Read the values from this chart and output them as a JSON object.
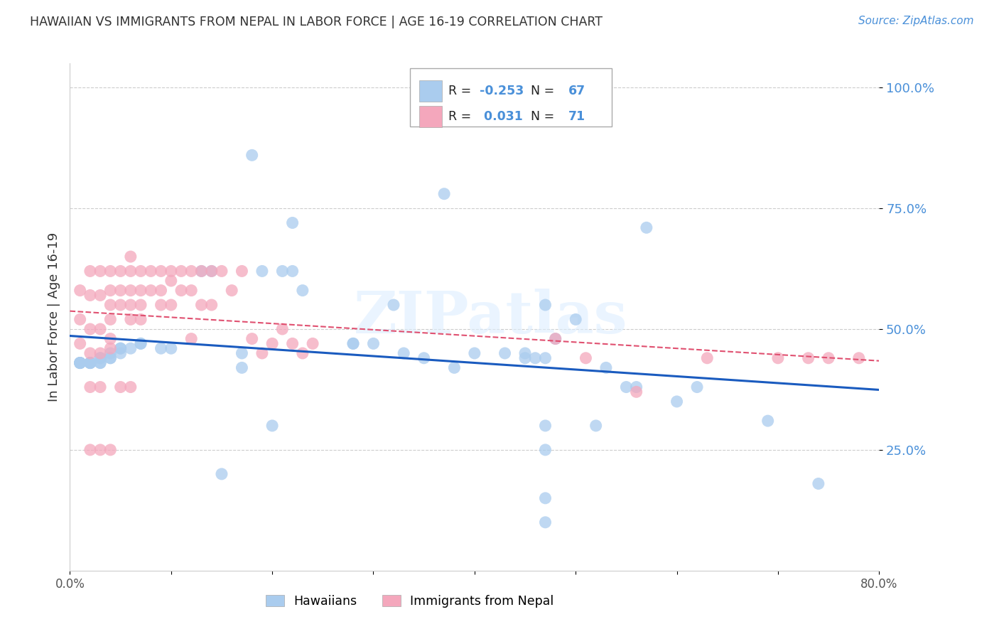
{
  "title": "HAWAIIAN VS IMMIGRANTS FROM NEPAL IN LABOR FORCE | AGE 16-19 CORRELATION CHART",
  "source": "Source: ZipAtlas.com",
  "ylabel": "In Labor Force | Age 16-19",
  "xlim": [
    0.0,
    0.8
  ],
  "ylim": [
    0.0,
    1.05
  ],
  "yticks": [
    0.25,
    0.5,
    0.75,
    1.0
  ],
  "ytick_labels": [
    "25.0%",
    "50.0%",
    "75.0%",
    "100.0%"
  ],
  "xtick_labels_show": [
    "0.0%",
    "80.0%"
  ],
  "hawaiians_color": "#aaccee",
  "nepal_color": "#f4a7bc",
  "trend_hawaiians_color": "#1a5bbf",
  "trend_nepal_color": "#e05070",
  "R_hawaiians": "-0.253",
  "N_hawaiians": "67",
  "R_nepal": "0.031",
  "N_nepal": "71",
  "watermark": "ZIPatlas",
  "background_color": "#ffffff",
  "grid_color": "#cccccc",
  "hawaiians_x": [
    0.32,
    0.37,
    0.47,
    0.5,
    0.48,
    0.43,
    0.38,
    0.57,
    0.13,
    0.14,
    0.19,
    0.23,
    0.28,
    0.3,
    0.17,
    0.1,
    0.09,
    0.07,
    0.07,
    0.06,
    0.05,
    0.05,
    0.04,
    0.04,
    0.03,
    0.03,
    0.02,
    0.02,
    0.02,
    0.01,
    0.01,
    0.01,
    0.28,
    0.33,
    0.4,
    0.53,
    0.56,
    0.6,
    0.69,
    0.74,
    0.45,
    0.52,
    0.55,
    0.62,
    0.46,
    0.2,
    0.15,
    0.18,
    0.22,
    0.35,
    0.45,
    0.21,
    0.22,
    0.17,
    0.05,
    0.04,
    0.03,
    0.03,
    0.02,
    0.02,
    0.01,
    0.01,
    0.47,
    0.47,
    0.47,
    0.47,
    0.47
  ],
  "hawaiians_y": [
    0.55,
    0.78,
    0.55,
    0.52,
    0.48,
    0.45,
    0.42,
    0.71,
    0.62,
    0.62,
    0.62,
    0.58,
    0.47,
    0.47,
    0.45,
    0.46,
    0.46,
    0.47,
    0.47,
    0.46,
    0.46,
    0.45,
    0.45,
    0.44,
    0.44,
    0.43,
    0.43,
    0.43,
    0.43,
    0.43,
    0.43,
    0.43,
    0.47,
    0.45,
    0.45,
    0.42,
    0.38,
    0.35,
    0.31,
    0.18,
    0.44,
    0.3,
    0.38,
    0.38,
    0.44,
    0.3,
    0.2,
    0.86,
    0.72,
    0.44,
    0.45,
    0.62,
    0.62,
    0.42,
    0.46,
    0.44,
    0.44,
    0.43,
    0.43,
    0.43,
    0.43,
    0.43,
    0.44,
    0.3,
    0.25,
    0.15,
    0.1
  ],
  "nepal_x": [
    0.01,
    0.01,
    0.01,
    0.02,
    0.02,
    0.02,
    0.02,
    0.02,
    0.03,
    0.03,
    0.03,
    0.03,
    0.03,
    0.04,
    0.04,
    0.04,
    0.04,
    0.04,
    0.04,
    0.04,
    0.05,
    0.05,
    0.05,
    0.06,
    0.06,
    0.06,
    0.06,
    0.06,
    0.07,
    0.07,
    0.07,
    0.07,
    0.08,
    0.08,
    0.09,
    0.09,
    0.09,
    0.1,
    0.1,
    0.1,
    0.11,
    0.11,
    0.12,
    0.12,
    0.12,
    0.13,
    0.13,
    0.14,
    0.14,
    0.15,
    0.16,
    0.17,
    0.18,
    0.19,
    0.2,
    0.21,
    0.22,
    0.23,
    0.24,
    0.48,
    0.51,
    0.56,
    0.63,
    0.7,
    0.73,
    0.75,
    0.78,
    0.02,
    0.03,
    0.05,
    0.06
  ],
  "nepal_y": [
    0.58,
    0.52,
    0.47,
    0.62,
    0.57,
    0.5,
    0.45,
    0.25,
    0.62,
    0.57,
    0.5,
    0.45,
    0.25,
    0.62,
    0.58,
    0.55,
    0.52,
    0.48,
    0.46,
    0.25,
    0.62,
    0.58,
    0.55,
    0.65,
    0.62,
    0.58,
    0.55,
    0.52,
    0.62,
    0.58,
    0.55,
    0.52,
    0.62,
    0.58,
    0.62,
    0.58,
    0.55,
    0.62,
    0.6,
    0.55,
    0.62,
    0.58,
    0.62,
    0.58,
    0.48,
    0.62,
    0.55,
    0.62,
    0.55,
    0.62,
    0.58,
    0.62,
    0.48,
    0.45,
    0.47,
    0.5,
    0.47,
    0.45,
    0.47,
    0.48,
    0.44,
    0.37,
    0.44,
    0.44,
    0.44,
    0.44,
    0.44,
    0.38,
    0.38,
    0.38,
    0.38
  ]
}
